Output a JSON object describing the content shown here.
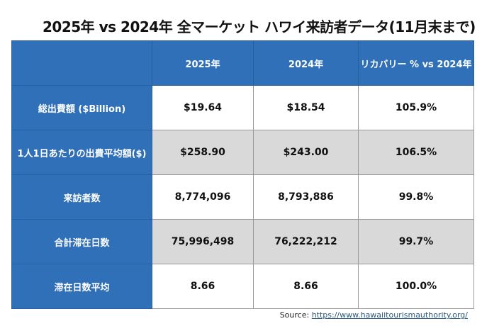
{
  "title": "2025年 vs 2024年 全マーケット  ハワイ来訪者データ(11月末まで)",
  "table": {
    "headers": [
      "",
      "2025年",
      "2024年",
      "リカバリー % vs 2024年"
    ],
    "rows": [
      {
        "label": "総出費額 ($Billion)",
        "v2025": "$19.64",
        "v2024": "$18.54",
        "recovery": "105.9%"
      },
      {
        "label": "1人1日あたりの出費平均額($)",
        "v2025": "$258.90",
        "v2024": "$243.00",
        "recovery": "106.5%"
      },
      {
        "label": "来訪者数",
        "v2025": "8,774,096",
        "v2024": "8,793,886",
        "recovery": "99.8%"
      },
      {
        "label": "合計滞在日数",
        "v2025": "75,996,498",
        "v2024": "76,222,212",
        "recovery": "99.7%"
      },
      {
        "label": "滞在日数平均",
        "v2025": "8.66",
        "v2024": "8.66",
        "recovery": "100.0%"
      }
    ]
  },
  "source": {
    "label": "Source: ",
    "url": "https://www.hawaiitourismauthority.org/"
  }
}
